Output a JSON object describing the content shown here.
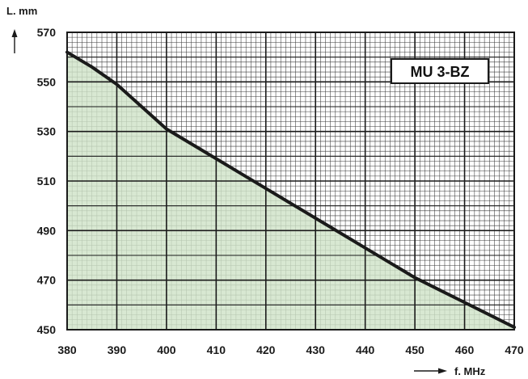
{
  "chart_data": {
    "type": "area",
    "title": "MU 3-BZ",
    "xlabel": "f. MHz",
    "ylabel": "L. mm",
    "xlim": [
      380,
      470
    ],
    "ylim": [
      450,
      570
    ],
    "x_ticks": [
      "380",
      "390",
      "400",
      "410",
      "420",
      "430",
      "440",
      "450",
      "460",
      "470"
    ],
    "y_ticks": [
      "570",
      "550",
      "530",
      "510",
      "490",
      "470",
      "450"
    ],
    "grid": true,
    "fill_color": "#cfe3c8",
    "line_color": "#1a1a1a",
    "series": [
      {
        "x": [
          380,
          385,
          390,
          395,
          400,
          405,
          410,
          415,
          420,
          425,
          430,
          435,
          440,
          445,
          450,
          455,
          460,
          465,
          470
        ],
        "y": [
          562,
          556,
          549,
          540,
          531,
          525,
          519,
          513,
          507,
          501,
          495,
          489,
          483,
          477,
          471,
          466,
          461,
          456,
          451
        ]
      }
    ]
  }
}
